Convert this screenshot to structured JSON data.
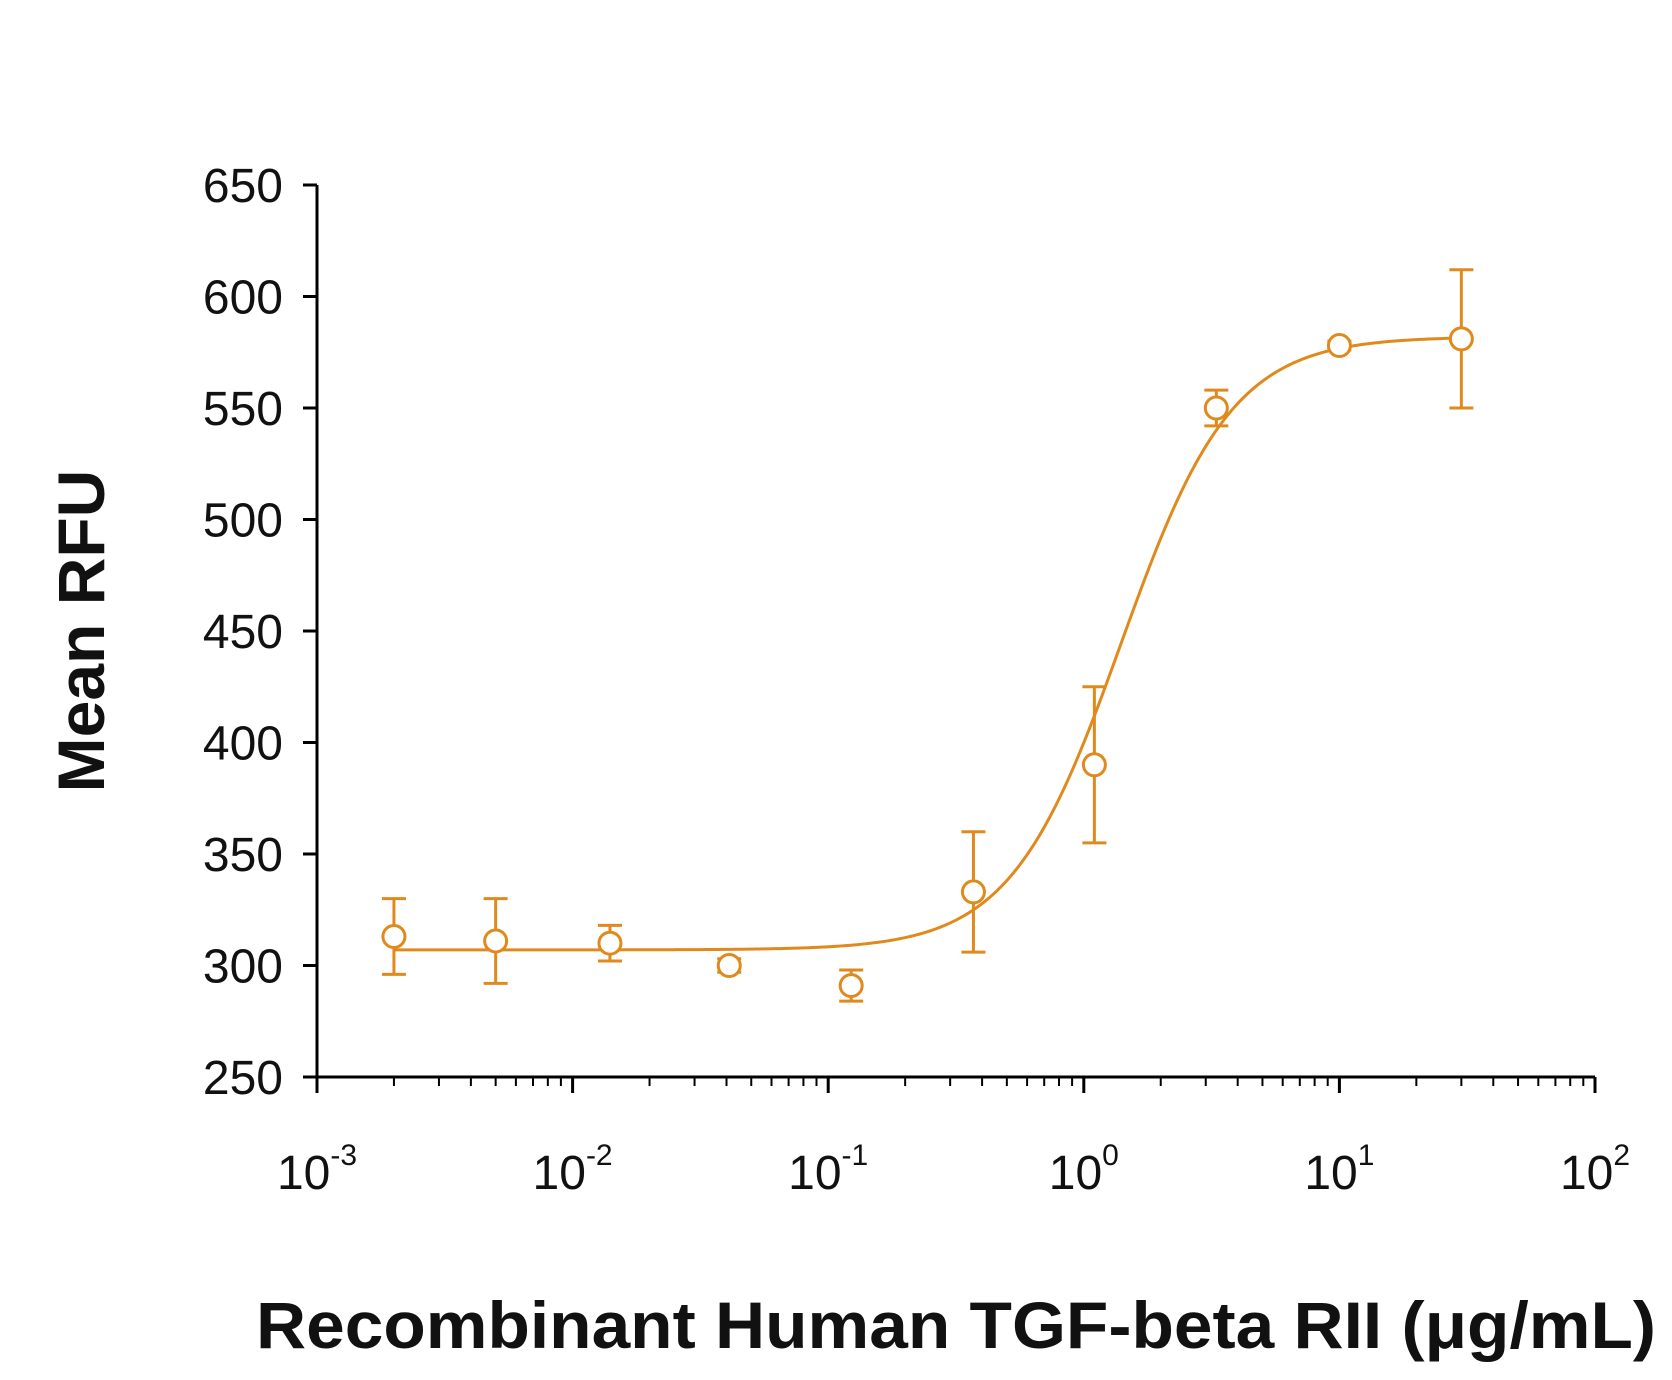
{
  "chart_data": {
    "type": "scatter",
    "title": "",
    "xlabel": "Recombinant Human TGF-beta RII (μg/mL)",
    "ylabel": "Mean RFU",
    "x_scale": "log",
    "xlim": [
      0.001,
      100
    ],
    "ylim": [
      250,
      650
    ],
    "x_ticks": [
      {
        "base": "10",
        "exp": "-3",
        "value": 0.001
      },
      {
        "base": "10",
        "exp": "-2",
        "value": 0.01
      },
      {
        "base": "10",
        "exp": "-1",
        "value": 0.1
      },
      {
        "base": "10",
        "exp": "0",
        "value": 1
      },
      {
        "base": "10",
        "exp": "1",
        "value": 10
      },
      {
        "base": "10",
        "exp": "2",
        "value": 100
      }
    ],
    "y_ticks": [
      "650",
      "600",
      "550",
      "500",
      "450",
      "400",
      "350",
      "300",
      "250"
    ],
    "grid": false,
    "color": "#E08A1E",
    "series": [
      {
        "marker": "open-circle",
        "x": [
          0.002,
          0.005,
          0.014,
          0.041,
          0.123,
          0.37,
          1.1,
          3.3,
          10,
          30
        ],
        "y": [
          313,
          311,
          310,
          300,
          291,
          333,
          390,
          550,
          578,
          581
        ],
        "error": [
          17,
          19,
          8,
          3,
          7,
          27,
          35,
          8,
          2,
          31
        ]
      }
    ],
    "fit": {
      "type": "4PL",
      "bottom": 307,
      "top": 582,
      "ec50": 1.4,
      "hill": 2.0
    }
  }
}
